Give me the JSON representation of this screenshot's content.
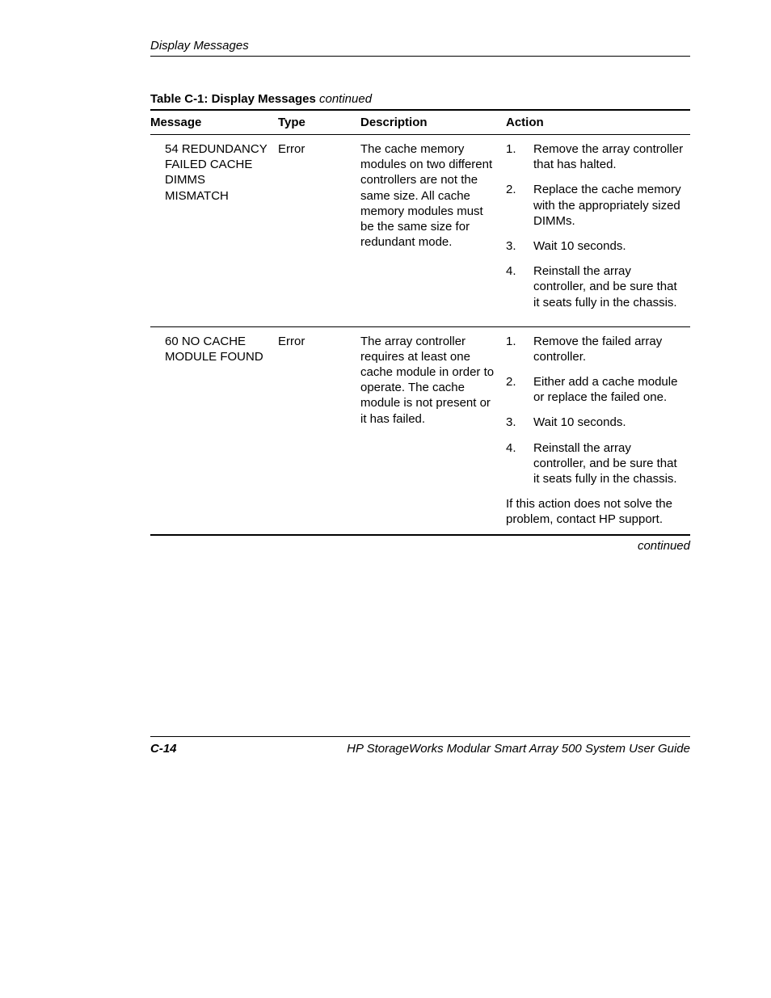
{
  "header": {
    "running_title": "Display Messages"
  },
  "table": {
    "caption_prefix": "Table C-1:  Display Messages",
    "caption_suffix": "continued",
    "columns": {
      "message": "Message",
      "type": "Type",
      "description": "Description",
      "action": "Action"
    },
    "rows": [
      {
        "message_lines": [
          "54 REDUNDANCY",
          "FAILED CACHE",
          "DIMMS MISMATCH"
        ],
        "type": "Error",
        "description": "The cache memory modules on two different controllers are not the same size. All cache memory modules must be the same size for redundant mode.",
        "actions": [
          "Remove the array controller that has halted.",
          "Replace the cache memory with the appropriately sized DIMMs.",
          "Wait 10 seconds.",
          "Reinstall the array controller, and be sure that it seats fully in the chassis."
        ],
        "note": null
      },
      {
        "message_lines": [
          "60 NO CACHE",
          "MODULE FOUND"
        ],
        "type": "Error",
        "description": "The array controller requires at least one cache module in order to operate. The cache module is not present or it has failed.",
        "actions": [
          "Remove the failed array controller.",
          "Either add a cache module or replace the failed one.",
          "Wait 10 seconds.",
          "Reinstall the array controller, and be sure that it seats fully in the chassis."
        ],
        "note": "If this action does not solve the problem, contact HP support."
      }
    ],
    "continued_label": "continued"
  },
  "footer": {
    "page_number": "C-14",
    "doc_title": "HP StorageWorks Modular Smart Array 500 System User Guide"
  }
}
